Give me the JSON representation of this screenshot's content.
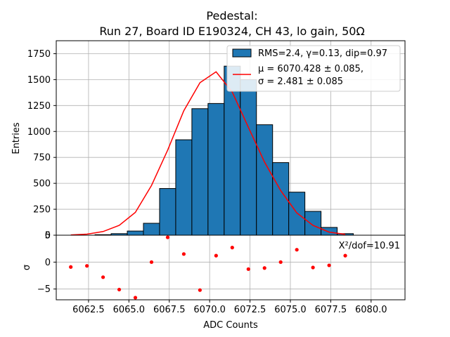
{
  "chart_data": [
    {
      "type": "bar",
      "panel": "histogram",
      "title_line1": "Pedestal:",
      "title_line2": "Run 27, Board ID E190324, CH 43, lo gain, 50Ω",
      "ylabel": "Entries",
      "ylim": [
        0,
        1875
      ],
      "xlim": [
        6060.5,
        6082.1
      ],
      "yticks": [
        0,
        250,
        500,
        750,
        1000,
        1250,
        1500,
        1750
      ],
      "bin_width": 1,
      "bin_left_edges": [
        6062.9,
        6063.9,
        6064.9,
        6065.9,
        6066.9,
        6067.9,
        6068.9,
        6069.9,
        6070.9,
        6071.9,
        6072.9,
        6073.9,
        6074.9,
        6075.9,
        6076.9,
        6077.9
      ],
      "values": [
        5,
        15,
        40,
        115,
        450,
        920,
        1220,
        1270,
        1630,
        1500,
        1065,
        700,
        415,
        230,
        75,
        15
      ],
      "bar_color": "#1f77b4",
      "fit": {
        "x": [
          6061.4,
          6062.4,
          6063.4,
          6064.4,
          6065.4,
          6066.4,
          6067.4,
          6068.4,
          6069.4,
          6070.4,
          6071.4,
          6072.4,
          6073.4,
          6074.4,
          6075.4,
          6076.4,
          6077.4,
          6078.4
        ],
        "y": [
          3,
          10,
          35,
          95,
          220,
          480,
          820,
          1200,
          1470,
          1575,
          1380,
          1040,
          705,
          430,
          215,
          95,
          30,
          8
        ],
        "color": "#ff0000"
      },
      "legend": {
        "placement": "top-right",
        "hist_label": "RMS=2.4, γ=0.13, dip=0.97",
        "fit_mu": "μ = 6070.428 ± 0.085,",
        "fit_sigma": "σ = 2.481 ± 0.085"
      }
    },
    {
      "type": "scatter",
      "panel": "residuals",
      "ylabel": "σ",
      "xlabel": "ADC Counts",
      "ylim": [
        -7,
        5
      ],
      "yticks": [
        -5,
        0,
        5
      ],
      "xticks": [
        6062.5,
        6065.0,
        6067.5,
        6070.0,
        6072.5,
        6075.0,
        6077.5,
        6080.0
      ],
      "xtick_labels": [
        "6062.5",
        "6065.0",
        "6067.5",
        "6070.0",
        "6072.5",
        "6075.0",
        "6077.5",
        "6080.0"
      ],
      "x": [
        6061.4,
        6062.4,
        6063.4,
        6064.4,
        6065.4,
        6066.4,
        6067.4,
        6068.4,
        6069.4,
        6070.4,
        6071.4,
        6072.4,
        6073.4,
        6074.4,
        6075.4,
        6076.4,
        6077.4,
        6078.4
      ],
      "y": [
        -0.9,
        -0.7,
        -2.8,
        -5.1,
        -6.6,
        0,
        4.6,
        1.5,
        -5.2,
        1.2,
        2.7,
        -1.3,
        -1.1,
        0,
        2.3,
        -1.0,
        -0.6,
        1.2
      ],
      "point_color": "#ff0000",
      "annotation": "X²/dof=10.91"
    }
  ]
}
